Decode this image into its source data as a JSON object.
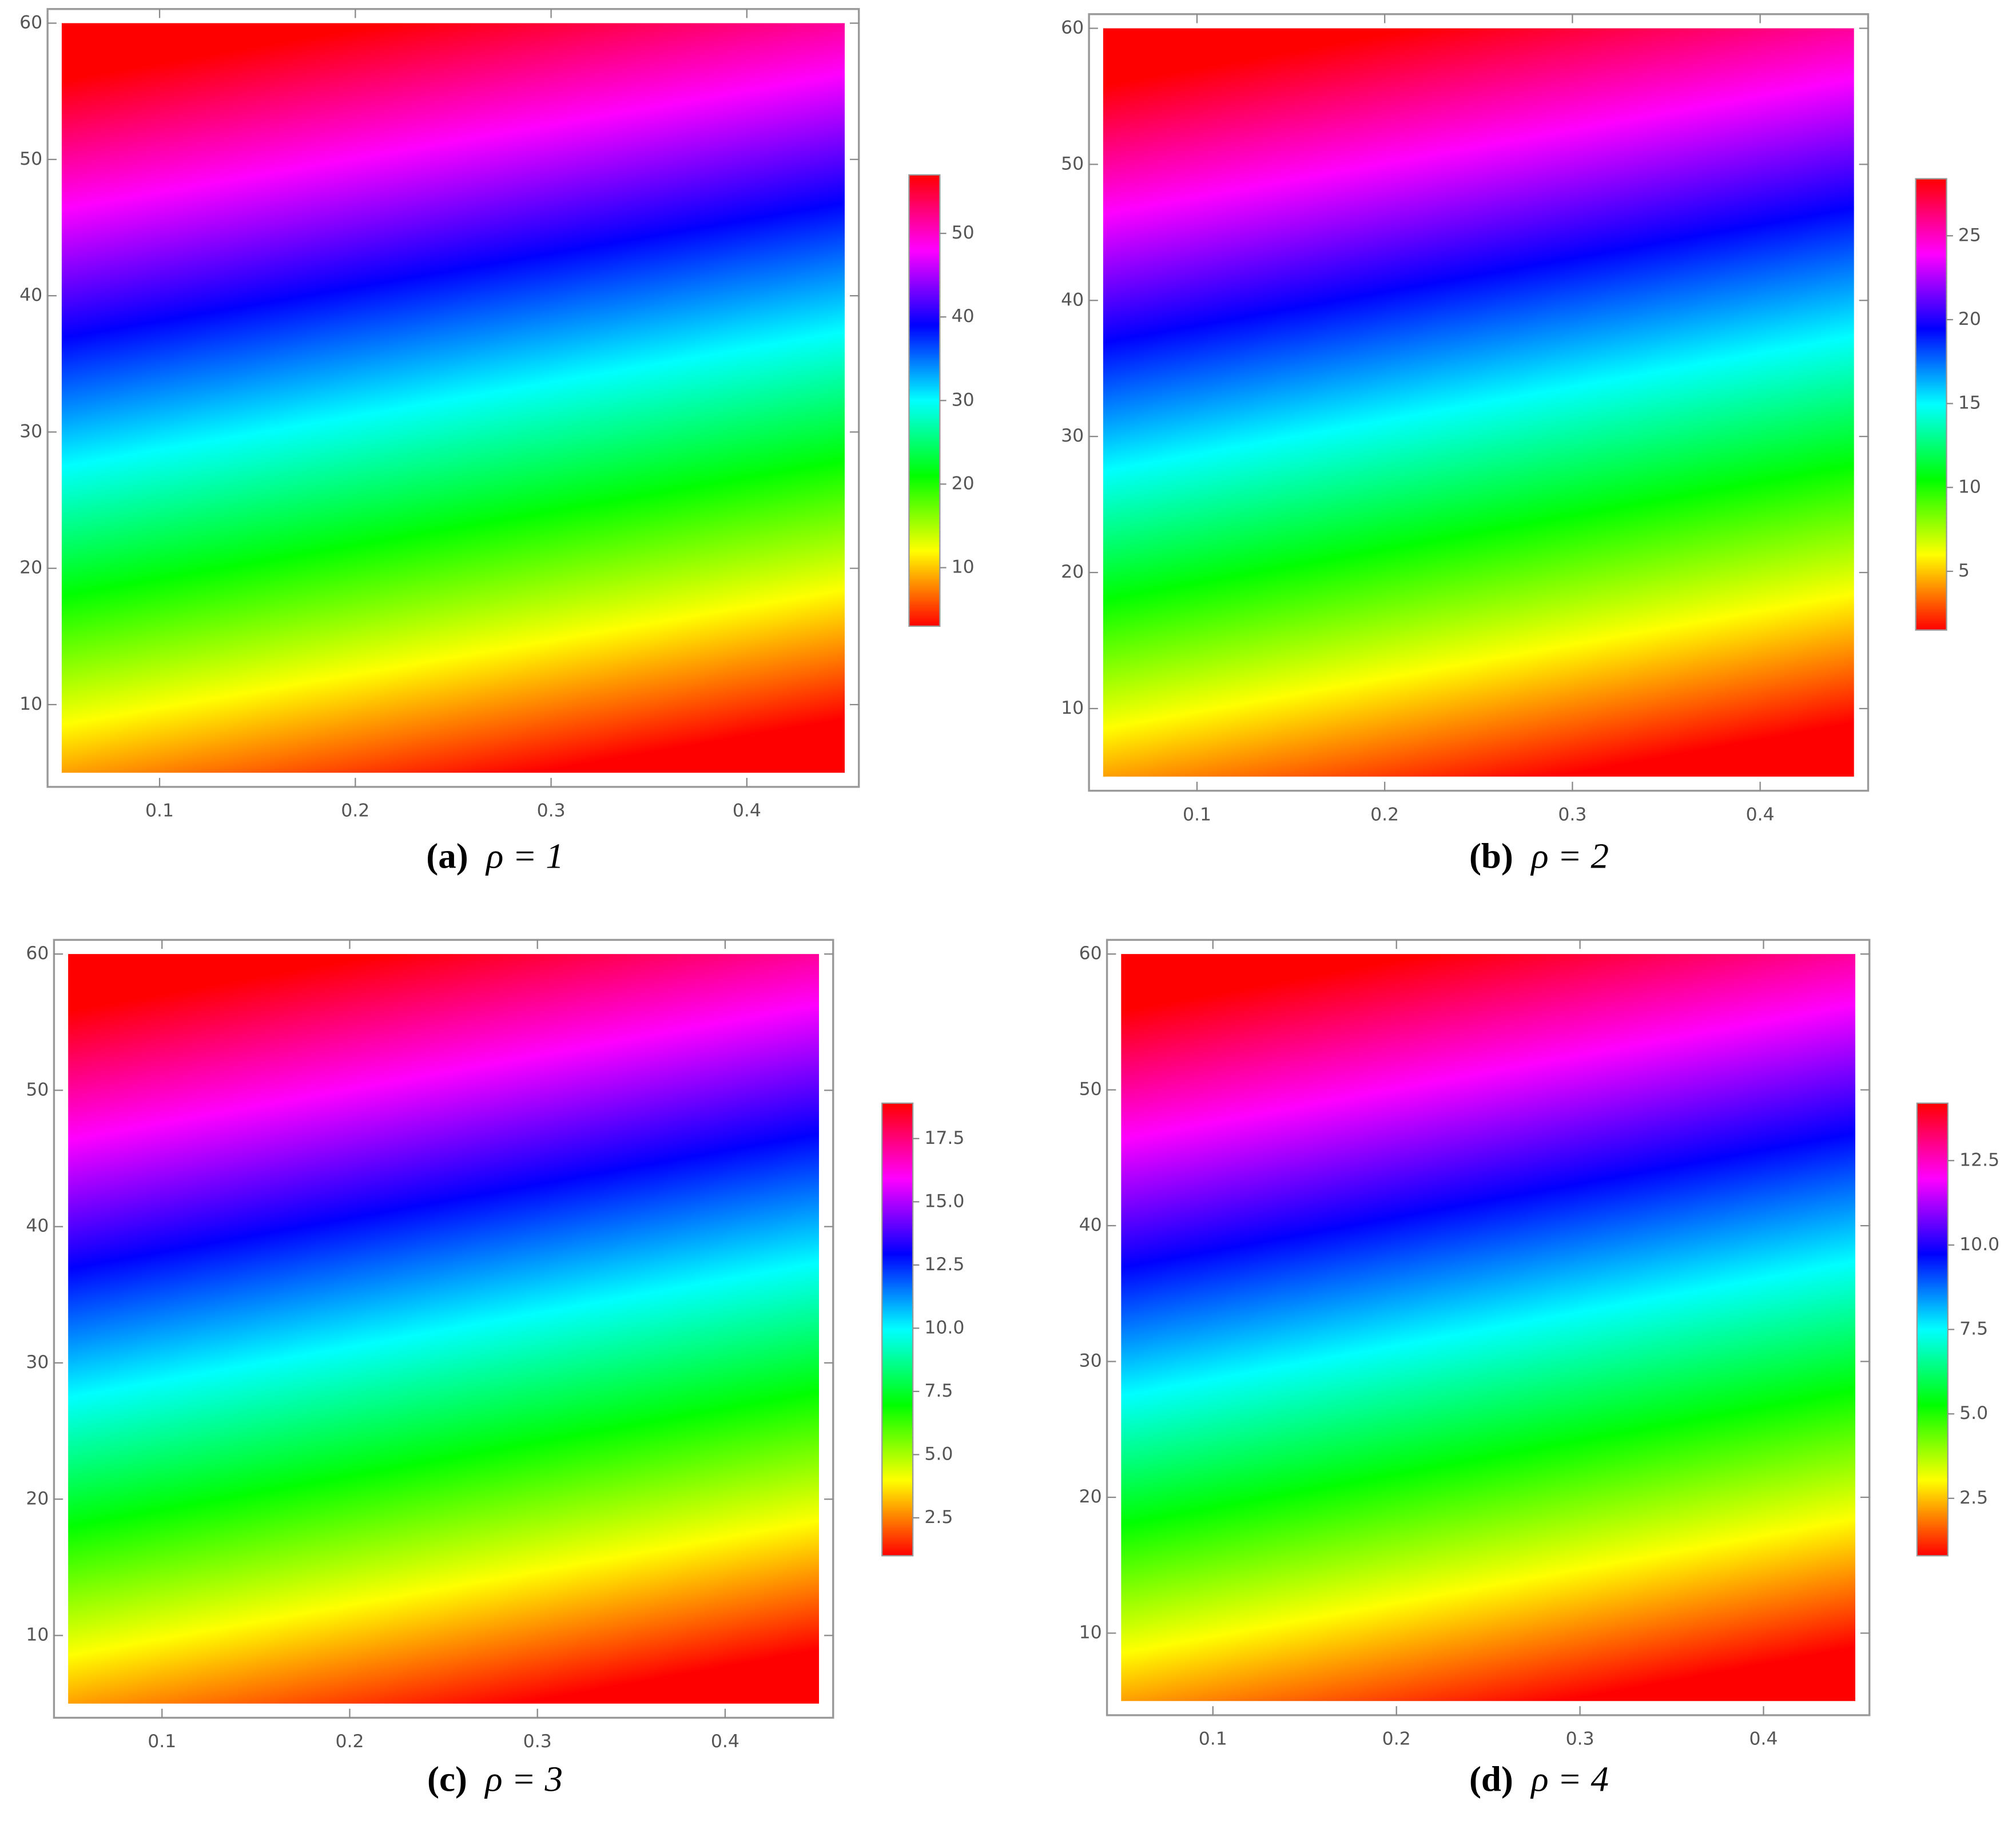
{
  "chart_data": [
    {
      "type": "density",
      "caption_label": "(a)",
      "caption": "ρ = 1",
      "xlim": [
        0.05,
        0.45
      ],
      "xticks": [
        0.1,
        0.2,
        0.3,
        0.4
      ],
      "ylim": [
        5,
        60
      ],
      "yticks": [
        10,
        20,
        30,
        40,
        50,
        60
      ],
      "colormap": [
        "#ff0000",
        "#ffff00",
        "#00ff00",
        "#00ffff",
        "#0000ff",
        "#ff00ff",
        "#ff0000"
      ],
      "colorbar": {
        "lim": [
          3,
          57
        ],
        "ticks": [
          10,
          20,
          30,
          40,
          50
        ]
      }
    },
    {
      "type": "density",
      "caption_label": "(b)",
      "caption": "ρ = 2",
      "xlim": [
        0.05,
        0.45
      ],
      "xticks": [
        0.1,
        0.2,
        0.3,
        0.4
      ],
      "ylim": [
        5,
        60
      ],
      "yticks": [
        10,
        20,
        30,
        40,
        50,
        60
      ],
      "colormap": [
        "#ff0000",
        "#ffff00",
        "#00ff00",
        "#00ffff",
        "#0000ff",
        "#ff00ff",
        "#ff0000"
      ],
      "colorbar": {
        "lim": [
          1.5,
          28.4
        ],
        "ticks": [
          5,
          10,
          15,
          20,
          25
        ]
      }
    },
    {
      "type": "density",
      "caption_label": "(c)",
      "caption": "ρ = 3",
      "xlim": [
        0.05,
        0.45
      ],
      "xticks": [
        0.1,
        0.2,
        0.3,
        0.4
      ],
      "ylim": [
        5,
        60
      ],
      "yticks": [
        10,
        20,
        30,
        40,
        50,
        60
      ],
      "colormap": [
        "#ff0000",
        "#ffff00",
        "#00ff00",
        "#00ffff",
        "#0000ff",
        "#ff00ff",
        "#ff0000"
      ],
      "colorbar": {
        "lim": [
          1,
          18.9
        ],
        "ticks": [
          2.5,
          {
            "value": 5,
            "label": "5.0"
          },
          7.5,
          {
            "value": 10,
            "label": "10.0"
          },
          12.5,
          {
            "value": 15,
            "label": "15.0"
          },
          17.5
        ]
      }
    },
    {
      "type": "density",
      "caption_label": "(d)",
      "caption": "ρ = 4",
      "xlim": [
        0.05,
        0.45
      ],
      "xticks": [
        0.1,
        0.2,
        0.3,
        0.4
      ],
      "ylim": [
        5,
        60
      ],
      "yticks": [
        10,
        20,
        30,
        40,
        50,
        60
      ],
      "colormap": [
        "#ff0000",
        "#ffff00",
        "#00ff00",
        "#00ffff",
        "#0000ff",
        "#ff00ff",
        "#ff0000"
      ],
      "colorbar": {
        "lim": [
          0.8,
          14.2
        ],
        "ticks": [
          2.5,
          {
            "value": 5,
            "label": "5.0"
          },
          7.5,
          {
            "value": 10,
            "label": "10.0"
          },
          12.5
        ]
      }
    }
  ]
}
